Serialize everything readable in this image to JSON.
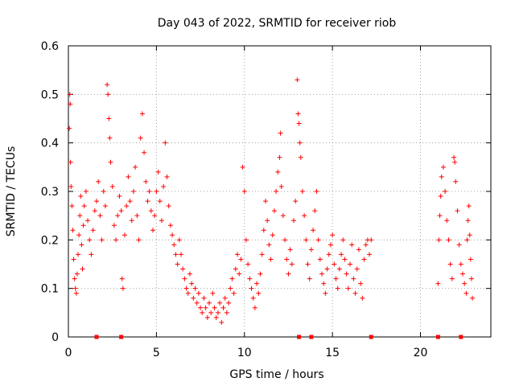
{
  "chart_data": {
    "type": "scatter",
    "title": "Day 043 of 2022, SRMTID for receiver riob",
    "xlabel": "GPS time / hours",
    "ylabel": "SRMTID / TECUs",
    "xlim": [
      0,
      24
    ],
    "ylim": [
      0,
      0.6
    ],
    "xticks": [
      0,
      5,
      10,
      15,
      20
    ],
    "xtick_labels": [
      "0",
      "5",
      "10",
      "15",
      "20"
    ],
    "yticks": [
      0,
      0.1,
      0.2,
      0.3,
      0.4,
      0.5,
      0.6
    ],
    "ytick_labels": [
      "0",
      "0.1",
      "0.2",
      "0.3",
      "0.4",
      "0.5",
      "0.6"
    ],
    "grid": true,
    "marker": "+",
    "color": "#ff0000",
    "series": [
      {
        "name": "SRMTID",
        "points": [
          [
            0.05,
            0.43
          ],
          [
            0.08,
            0.5
          ],
          [
            0.1,
            0.48
          ],
          [
            0.12,
            0.36
          ],
          [
            0.15,
            0.31
          ],
          [
            0.2,
            0.27
          ],
          [
            0.25,
            0.22
          ],
          [
            0.3,
            0.16
          ],
          [
            0.35,
            0.12
          ],
          [
            0.4,
            0.1
          ],
          [
            0.45,
            0.09
          ],
          [
            0.5,
            0.13
          ],
          [
            0.55,
            0.17
          ],
          [
            0.6,
            0.21
          ],
          [
            0.65,
            0.25
          ],
          [
            0.7,
            0.29
          ],
          [
            0.75,
            0.19
          ],
          [
            0.8,
            0.14
          ],
          [
            0.85,
            0.23
          ],
          [
            0.9,
            0.27
          ],
          [
            1.0,
            0.3
          ],
          [
            1.1,
            0.24
          ],
          [
            1.2,
            0.2
          ],
          [
            1.3,
            0.17
          ],
          [
            1.4,
            0.22
          ],
          [
            1.5,
            0.26
          ],
          [
            1.6,
            0.28
          ],
          [
            1.7,
            0.32
          ],
          [
            1.8,
            0.25
          ],
          [
            1.9,
            0.2
          ],
          [
            2.0,
            0.3
          ],
          [
            2.1,
            0.27
          ],
          [
            2.2,
            0.52
          ],
          [
            2.25,
            0.5
          ],
          [
            2.3,
            0.45
          ],
          [
            2.35,
            0.41
          ],
          [
            2.4,
            0.36
          ],
          [
            2.5,
            0.31
          ],
          [
            2.6,
            0.23
          ],
          [
            2.7,
            0.2
          ],
          [
            2.8,
            0.25
          ],
          [
            2.9,
            0.29
          ],
          [
            3.0,
            0.26
          ],
          [
            3.05,
            0.12
          ],
          [
            3.1,
            0.1
          ],
          [
            3.2,
            0.21
          ],
          [
            3.3,
            0.27
          ],
          [
            3.4,
            0.33
          ],
          [
            3.5,
            0.28
          ],
          [
            3.6,
            0.24
          ],
          [
            3.7,
            0.3
          ],
          [
            3.8,
            0.35
          ],
          [
            3.9,
            0.25
          ],
          [
            4.0,
            0.2
          ],
          [
            4.1,
            0.41
          ],
          [
            4.2,
            0.46
          ],
          [
            4.3,
            0.38
          ],
          [
            4.4,
            0.32
          ],
          [
            4.5,
            0.28
          ],
          [
            4.6,
            0.3
          ],
          [
            4.7,
            0.26
          ],
          [
            4.8,
            0.22
          ],
          [
            4.9,
            0.25
          ],
          [
            5.0,
            0.3
          ],
          [
            5.1,
            0.34
          ],
          [
            5.2,
            0.28
          ],
          [
            5.3,
            0.24
          ],
          [
            5.4,
            0.31
          ],
          [
            5.5,
            0.4
          ],
          [
            5.6,
            0.33
          ],
          [
            5.7,
            0.27
          ],
          [
            5.8,
            0.23
          ],
          [
            5.9,
            0.21
          ],
          [
            6.0,
            0.19
          ],
          [
            6.1,
            0.17
          ],
          [
            6.2,
            0.15
          ],
          [
            6.3,
            0.2
          ],
          [
            6.4,
            0.17
          ],
          [
            6.5,
            0.14
          ],
          [
            6.6,
            0.12
          ],
          [
            6.7,
            0.1
          ],
          [
            6.8,
            0.09
          ],
          [
            6.9,
            0.13
          ],
          [
            7.0,
            0.11
          ],
          [
            7.1,
            0.08
          ],
          [
            7.2,
            0.1
          ],
          [
            7.3,
            0.07
          ],
          [
            7.4,
            0.09
          ],
          [
            7.5,
            0.06
          ],
          [
            7.6,
            0.05
          ],
          [
            7.7,
            0.08
          ],
          [
            7.8,
            0.06
          ],
          [
            7.9,
            0.04
          ],
          [
            8.0,
            0.07
          ],
          [
            8.1,
            0.05
          ],
          [
            8.2,
            0.09
          ],
          [
            8.3,
            0.06
          ],
          [
            8.4,
            0.04
          ],
          [
            8.5,
            0.05
          ],
          [
            8.6,
            0.07
          ],
          [
            8.7,
            0.03
          ],
          [
            8.8,
            0.06
          ],
          [
            8.9,
            0.08
          ],
          [
            9.0,
            0.05
          ],
          [
            9.1,
            0.07
          ],
          [
            9.2,
            0.1
          ],
          [
            9.3,
            0.12
          ],
          [
            9.4,
            0.09
          ],
          [
            9.5,
            0.14
          ],
          [
            9.6,
            0.17
          ],
          [
            9.7,
            0.13
          ],
          [
            9.8,
            0.16
          ],
          [
            9.9,
            0.35
          ],
          [
            10.0,
            0.3
          ],
          [
            10.1,
            0.2
          ],
          [
            10.2,
            0.15
          ],
          [
            10.3,
            0.12
          ],
          [
            10.4,
            0.1
          ],
          [
            10.5,
            0.08
          ],
          [
            10.6,
            0.06
          ],
          [
            10.7,
            0.11
          ],
          [
            10.8,
            0.09
          ],
          [
            10.9,
            0.13
          ],
          [
            11.0,
            0.17
          ],
          [
            11.1,
            0.22
          ],
          [
            11.2,
            0.28
          ],
          [
            11.3,
            0.24
          ],
          [
            11.4,
            0.19
          ],
          [
            11.5,
            0.16
          ],
          [
            11.6,
            0.21
          ],
          [
            11.7,
            0.26
          ],
          [
            11.8,
            0.3
          ],
          [
            11.9,
            0.34
          ],
          [
            12.0,
            0.37
          ],
          [
            12.05,
            0.42
          ],
          [
            12.1,
            0.31
          ],
          [
            12.2,
            0.25
          ],
          [
            12.3,
            0.2
          ],
          [
            12.4,
            0.16
          ],
          [
            12.5,
            0.13
          ],
          [
            12.6,
            0.18
          ],
          [
            12.7,
            0.15
          ],
          [
            12.8,
            0.24
          ],
          [
            12.9,
            0.28
          ],
          [
            13.0,
            0.53
          ],
          [
            13.05,
            0.46
          ],
          [
            13.1,
            0.44
          ],
          [
            13.15,
            0.4
          ],
          [
            13.2,
            0.37
          ],
          [
            13.3,
            0.3
          ],
          [
            13.4,
            0.25
          ],
          [
            13.5,
            0.2
          ],
          [
            13.6,
            0.15
          ],
          [
            13.7,
            0.12
          ],
          [
            13.8,
            0.18
          ],
          [
            13.9,
            0.22
          ],
          [
            14.0,
            0.26
          ],
          [
            14.1,
            0.3
          ],
          [
            14.2,
            0.2
          ],
          [
            14.3,
            0.16
          ],
          [
            14.4,
            0.13
          ],
          [
            14.5,
            0.11
          ],
          [
            14.6,
            0.09
          ],
          [
            14.7,
            0.14
          ],
          [
            14.8,
            0.17
          ],
          [
            14.9,
            0.19
          ],
          [
            15.0,
            0.21
          ],
          [
            15.1,
            0.15
          ],
          [
            15.2,
            0.12
          ],
          [
            15.3,
            0.1
          ],
          [
            15.4,
            0.14
          ],
          [
            15.5,
            0.17
          ],
          [
            15.6,
            0.2
          ],
          [
            15.7,
            0.16
          ],
          [
            15.8,
            0.13
          ],
          [
            15.9,
            0.1
          ],
          [
            16.0,
            0.15
          ],
          [
            16.1,
            0.19
          ],
          [
            16.2,
            0.12
          ],
          [
            16.3,
            0.09
          ],
          [
            16.4,
            0.14
          ],
          [
            16.5,
            0.18
          ],
          [
            16.6,
            0.11
          ],
          [
            16.7,
            0.08
          ],
          [
            16.8,
            0.16
          ],
          [
            16.9,
            0.19
          ],
          [
            17.0,
            0.2
          ],
          [
            17.1,
            0.17
          ],
          [
            17.2,
            0.2
          ],
          [
            21.0,
            0.11
          ],
          [
            21.05,
            0.2
          ],
          [
            21.1,
            0.25
          ],
          [
            21.15,
            0.29
          ],
          [
            21.2,
            0.33
          ],
          [
            21.3,
            0.35
          ],
          [
            21.4,
            0.3
          ],
          [
            21.5,
            0.24
          ],
          [
            21.6,
            0.2
          ],
          [
            21.7,
            0.15
          ],
          [
            21.8,
            0.12
          ],
          [
            21.9,
            0.37
          ],
          [
            21.95,
            0.36
          ],
          [
            22.0,
            0.32
          ],
          [
            22.1,
            0.26
          ],
          [
            22.2,
            0.19
          ],
          [
            22.3,
            0.15
          ],
          [
            22.4,
            0.13
          ],
          [
            22.5,
            0.11
          ],
          [
            22.6,
            0.09
          ],
          [
            22.65,
            0.2
          ],
          [
            22.7,
            0.24
          ],
          [
            22.75,
            0.27
          ],
          [
            22.8,
            0.21
          ],
          [
            22.85,
            0.16
          ],
          [
            22.9,
            0.12
          ],
          [
            22.95,
            0.08
          ]
        ]
      }
    ],
    "zero_markers": [
      1.6,
      3.0,
      13.1,
      13.8,
      17.2,
      21.0,
      22.3
    ]
  }
}
